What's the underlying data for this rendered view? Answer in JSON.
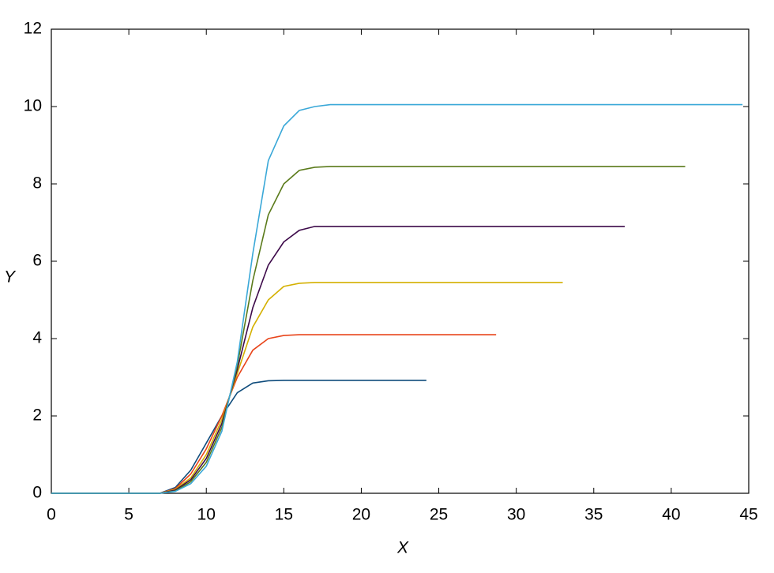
{
  "chart_data": {
    "type": "line",
    "x_label": "X",
    "y_label": "Y",
    "xlim": [
      0,
      45
    ],
    "xticks": [
      0,
      5,
      10,
      15,
      20,
      25,
      30,
      35,
      40,
      45
    ],
    "ylim": [
      0,
      12
    ],
    "yticks": [
      0,
      2,
      4,
      6,
      8,
      10,
      12
    ],
    "series": [
      {
        "color": "#0f4c7c",
        "x": [
          0,
          7,
          8,
          9,
          10,
          11,
          12,
          13,
          14,
          15,
          24.2
        ],
        "values": [
          0,
          0,
          0.15,
          0.6,
          1.3,
          2.0,
          2.6,
          2.85,
          2.91,
          2.92,
          2.92
        ]
      },
      {
        "color": "#e8441a",
        "x": [
          0,
          7,
          8,
          9,
          10,
          11,
          12,
          13,
          14,
          15,
          16,
          28.7
        ],
        "values": [
          0,
          0,
          0.12,
          0.5,
          1.15,
          2.0,
          3.0,
          3.7,
          4.0,
          4.08,
          4.1,
          4.1
        ]
      },
      {
        "color": "#d4b000",
        "x": [
          0,
          7,
          8,
          9,
          10,
          11,
          12,
          13,
          14,
          15,
          16,
          17,
          33
        ],
        "values": [
          0,
          0,
          0.1,
          0.4,
          1.0,
          1.9,
          3.1,
          4.3,
          5.0,
          5.35,
          5.43,
          5.45,
          5.45
        ]
      },
      {
        "color": "#3d0a4a",
        "x": [
          0,
          7,
          8,
          9,
          10,
          11,
          12,
          13,
          14,
          15,
          16,
          17,
          37
        ],
        "values": [
          0,
          0,
          0.08,
          0.35,
          0.9,
          1.8,
          3.2,
          4.8,
          5.9,
          6.5,
          6.8,
          6.9,
          6.9
        ]
      },
      {
        "color": "#5a7a1a",
        "x": [
          0,
          7,
          8,
          9,
          10,
          11,
          12,
          13,
          14,
          15,
          16,
          17,
          18,
          40.9
        ],
        "values": [
          0,
          0,
          0.06,
          0.3,
          0.8,
          1.7,
          3.3,
          5.5,
          7.2,
          8.0,
          8.35,
          8.43,
          8.45,
          8.45
        ]
      },
      {
        "color": "#3aa8d8",
        "x": [
          0,
          7,
          8,
          9,
          10,
          11,
          12,
          13,
          14,
          15,
          16,
          17,
          18,
          44.6
        ],
        "values": [
          0,
          0,
          0.05,
          0.25,
          0.7,
          1.6,
          3.4,
          6.2,
          8.6,
          9.5,
          9.9,
          10.0,
          10.05,
          10.05
        ]
      }
    ]
  }
}
